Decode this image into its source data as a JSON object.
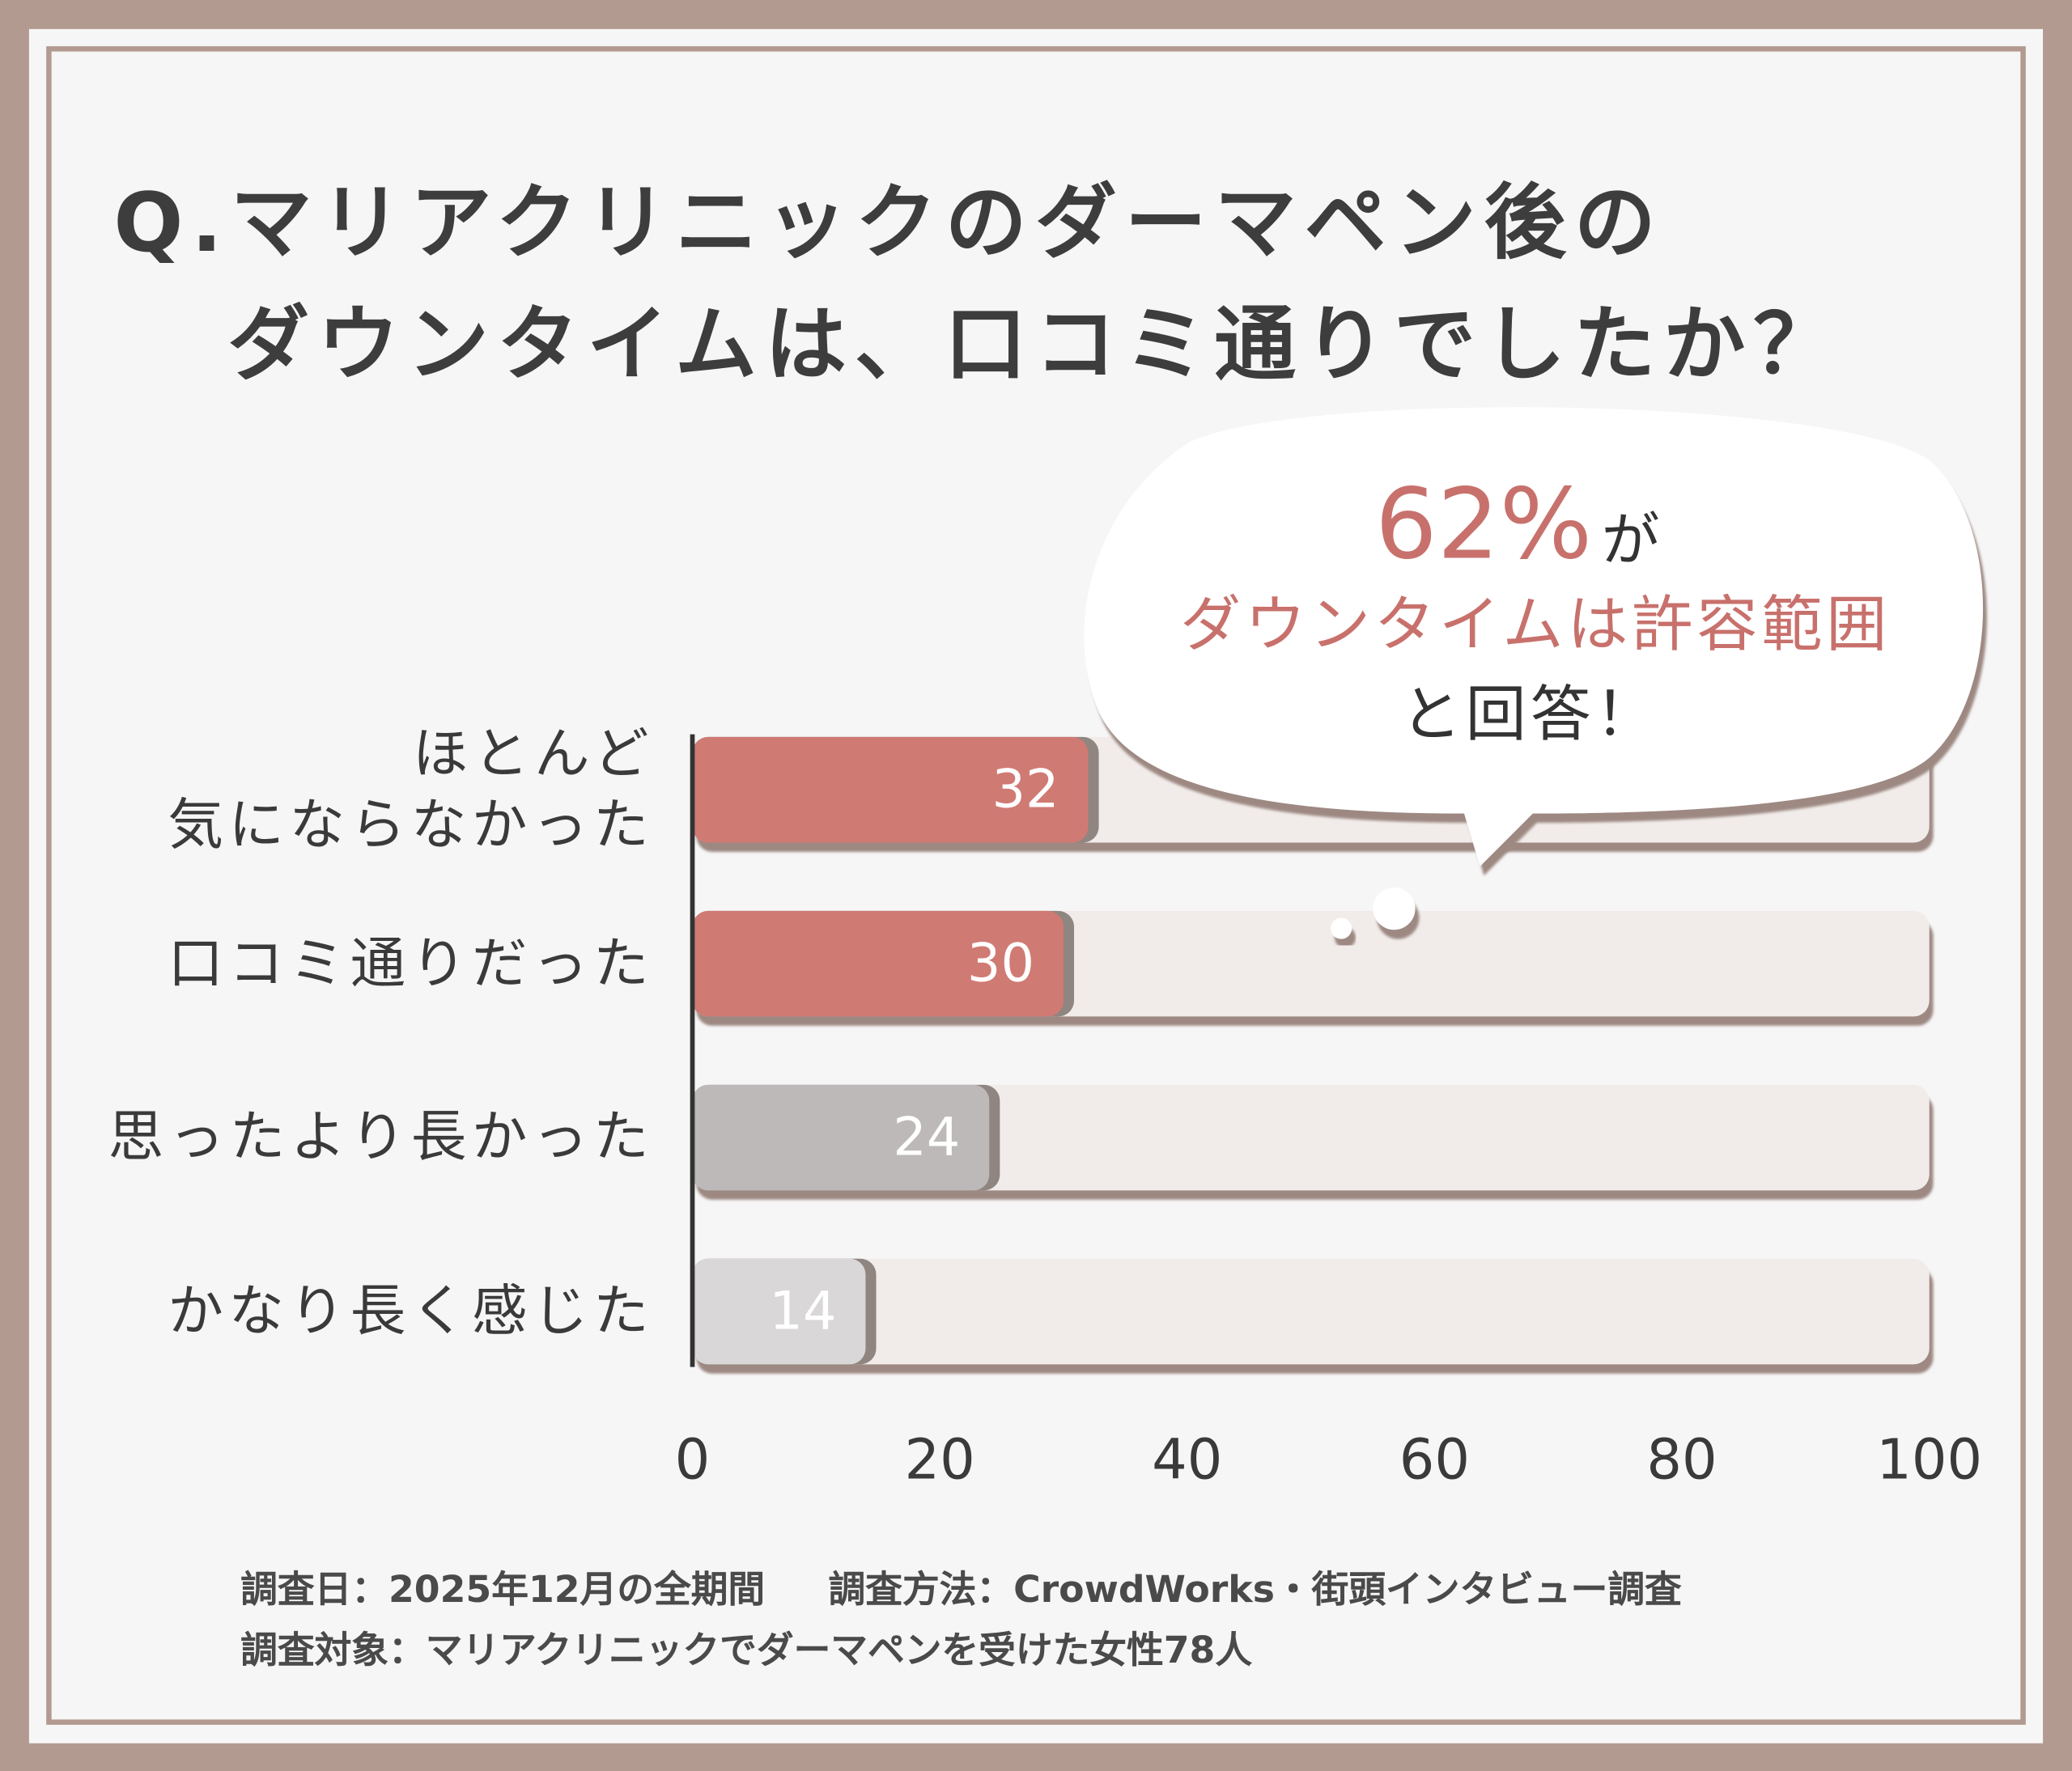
{
  "chart_data": {
    "type": "barh",
    "title": [
      "Q.マリアクリニックのダーマペン後の",
      "ダウンタイムは、口コミ通りでしたか？"
    ],
    "categories": [
      "ほとんど\n気にならなかった",
      "口コミ通りだった",
      "思ったより長かった",
      "かなり長く感じた"
    ],
    "values": [
      32,
      30,
      24,
      14
    ],
    "colors": [
      "#d07a74",
      "#d07a74",
      "#bdb9b8",
      "#d9d7d7"
    ],
    "xlim": [
      0,
      100
    ],
    "xticks": [
      0,
      20,
      40,
      60,
      80,
      100
    ],
    "grid": false,
    "annotation": {
      "percent": "62%",
      "particle": "が",
      "highlight": "ダウンタイムは許容範囲",
      "closing": "と回答！"
    },
    "footnotes": [
      "調査日：2025年12月の全期間",
      "調査方法：CrowdWorks・街頭インタビュー調査",
      "調査対象：マリアクリニックでダーマペンを受けた女性78人"
    ]
  }
}
